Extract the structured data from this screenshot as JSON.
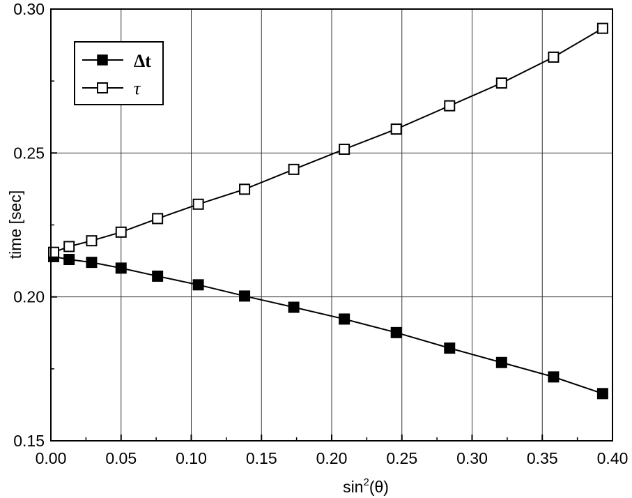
{
  "chart_data": {
    "type": "line",
    "xlabel": "sin",
    "xlabel_sup": "2",
    "xlabel_arg": "(θ)",
    "ylabel": "time [sec]",
    "xlim": [
      0.0,
      0.4
    ],
    "ylim": [
      0.15,
      0.3
    ],
    "x_ticks": [
      "0.00",
      "0.05",
      "0.10",
      "0.15",
      "0.20",
      "0.25",
      "0.30",
      "0.35",
      "0.40"
    ],
    "y_ticks": [
      "0.15",
      "0.20",
      "0.25",
      "0.30"
    ],
    "grid": true,
    "legend_position": "top-left",
    "series": [
      {
        "name": "Δt",
        "marker": "filled-square",
        "color": "#000000",
        "x": [
          0.002,
          0.013,
          0.029,
          0.05,
          0.076,
          0.105,
          0.138,
          0.173,
          0.209,
          0.246,
          0.284,
          0.321,
          0.358,
          0.393
        ],
        "y": [
          0.214,
          0.213,
          0.212,
          0.21,
          0.2072,
          0.2042,
          0.2003,
          0.1964,
          0.1923,
          0.1876,
          0.1822,
          0.1772,
          0.1722,
          0.1664
        ]
      },
      {
        "name": "τ",
        "marker": "open-square",
        "color": "#000000",
        "x": [
          0.002,
          0.013,
          0.029,
          0.05,
          0.076,
          0.105,
          0.138,
          0.173,
          0.209,
          0.246,
          0.284,
          0.321,
          0.358,
          0.393
        ],
        "y": [
          0.2155,
          0.2175,
          0.2195,
          0.2225,
          0.2272,
          0.2322,
          0.2374,
          0.2443,
          0.2513,
          0.2583,
          0.2664,
          0.2743,
          0.2833,
          0.2933
        ]
      }
    ]
  }
}
